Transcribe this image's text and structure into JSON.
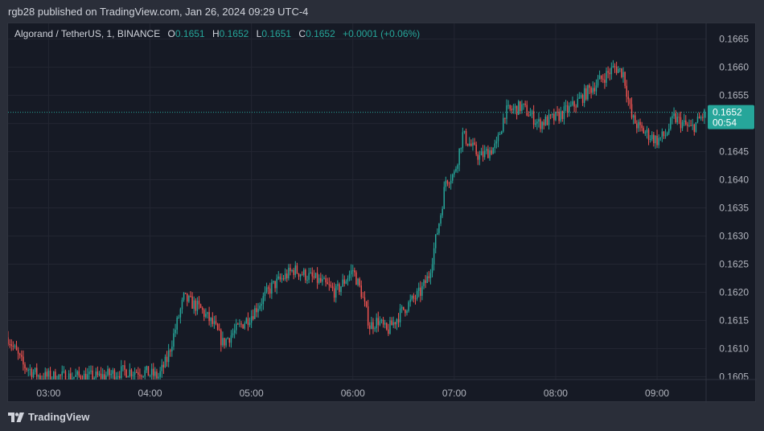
{
  "header": {
    "published_line": "rgb28 published on TradingView.com, Jan 26, 2024 09:29 UTC-4"
  },
  "legend": {
    "symbol": "Algorand / TetherUS, 1, BINANCE",
    "o_label": "O",
    "o_value": "0.1651",
    "h_label": "H",
    "h_value": "0.1652",
    "l_label": "L",
    "l_value": "0.1651",
    "c_label": "C",
    "c_value": "0.1652",
    "change": "+0.0001 (+0.06%)"
  },
  "last_price": {
    "value": "0.1652",
    "countdown": "00:54"
  },
  "footer": {
    "brand": "TradingView"
  },
  "colors": {
    "up": "#26a69a",
    "down": "#ef5350",
    "background": "#161a25",
    "grid": "#232632",
    "text": "#b2b5be"
  },
  "chart_data": {
    "type": "candlestick",
    "title": "",
    "y_axis": {
      "ticks": [
        "0.1605",
        "0.1610",
        "0.1615",
        "0.1620",
        "0.1625",
        "0.1630",
        "0.1635",
        "0.1640",
        "0.1645",
        "0.1650",
        "0.1655",
        "0.1660",
        "0.1665"
      ],
      "range": [
        0.16045,
        0.16678
      ]
    },
    "x_axis": {
      "ticks": [
        "03:00",
        "04:00",
        "05:00",
        "06:00",
        "07:00",
        "08:00",
        "09:00"
      ],
      "range": [
        "02:36",
        "09:29"
      ]
    },
    "grid": true,
    "close_anchors": [
      [
        "02:36",
        0.1612
      ],
      [
        "02:45",
        0.1607
      ],
      [
        "02:55",
        0.1605
      ],
      [
        "03:30",
        0.1605
      ],
      [
        "03:45",
        0.1606
      ],
      [
        "03:55",
        0.1606
      ],
      [
        "04:05",
        0.1605
      ],
      [
        "04:10",
        0.1608
      ],
      [
        "04:20",
        0.1619
      ],
      [
        "04:30",
        0.1617
      ],
      [
        "04:38",
        0.1614
      ],
      [
        "04:43",
        0.1611
      ],
      [
        "04:50",
        0.1613
      ],
      [
        "05:00",
        0.1616
      ],
      [
        "05:12",
        0.1621
      ],
      [
        "05:25",
        0.1624
      ],
      [
        "05:40",
        0.1622
      ],
      [
        "05:50",
        0.162
      ],
      [
        "06:00",
        0.1624
      ],
      [
        "06:05",
        0.162
      ],
      [
        "06:10",
        0.1614
      ],
      [
        "06:15",
        0.1615
      ],
      [
        "06:20",
        0.1613
      ],
      [
        "06:30",
        0.1617
      ],
      [
        "06:40",
        0.162
      ],
      [
        "06:45",
        0.1623
      ],
      [
        "06:52",
        0.1634
      ],
      [
        "06:55",
        0.164
      ],
      [
        "07:00",
        0.1641
      ],
      [
        "07:05",
        0.1648
      ],
      [
        "07:15",
        0.1644
      ],
      [
        "07:25",
        0.1646
      ],
      [
        "07:30",
        0.1652
      ],
      [
        "07:40",
        0.1653
      ],
      [
        "07:50",
        0.165
      ],
      [
        "08:00",
        0.1651
      ],
      [
        "08:10",
        0.1653
      ],
      [
        "08:20",
        0.1656
      ],
      [
        "08:35",
        0.166
      ],
      [
        "08:40",
        0.1659
      ],
      [
        "08:45",
        0.1651
      ],
      [
        "08:50",
        0.1649
      ],
      [
        "09:00",
        0.1647
      ],
      [
        "09:05",
        0.1648
      ],
      [
        "09:10",
        0.1651
      ],
      [
        "09:20",
        0.1649
      ],
      [
        "09:29",
        0.1652
      ]
    ],
    "last_candle": {
      "open": 0.1651,
      "high": 0.1652,
      "low": 0.1651,
      "close": 0.1652
    }
  }
}
